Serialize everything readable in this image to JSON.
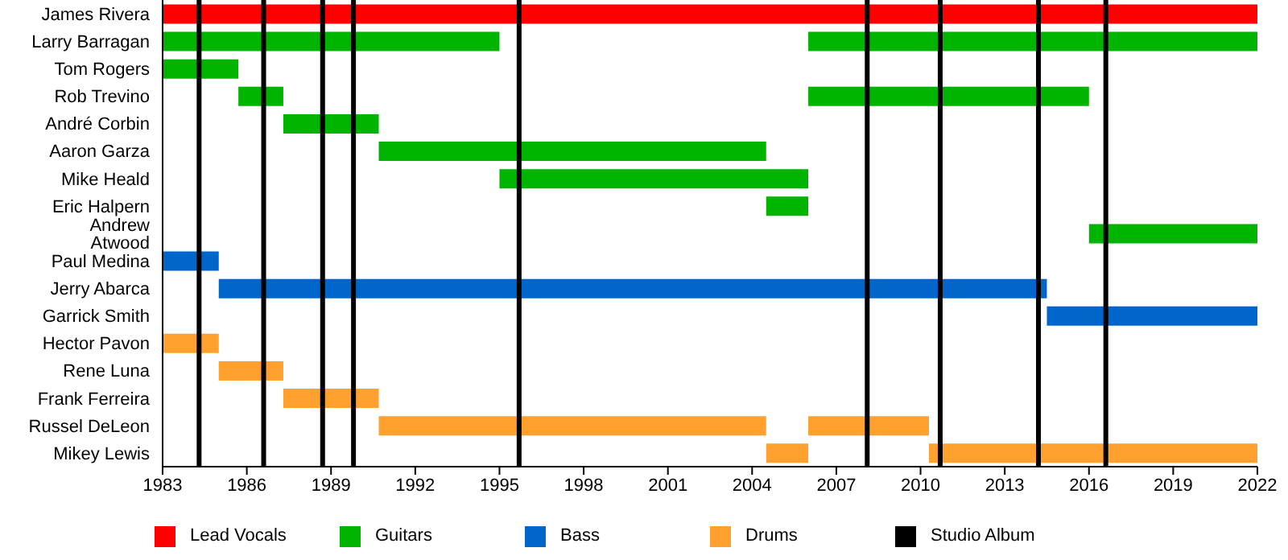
{
  "chart_data": {
    "type": "bar",
    "orientation": "horizontal",
    "categories": [
      "James Rivera",
      "Larry Barragan",
      "Tom Rogers",
      "Rob Trevino",
      "André Corbin",
      "Aaron Garza",
      "Mike Heald",
      "Eric Halpern",
      "Andrew Atwood",
      "Paul Medina",
      "Jerry Abarca",
      "Garrick Smith",
      "Hector Pavon",
      "Rene Luna",
      "Frank Ferreira",
      "Russel DeLeon",
      "Mikey Lewis"
    ],
    "series": [
      {
        "name": "Lead Vocals",
        "color": "#ff0000",
        "base": [
          1983,
          null,
          null,
          null,
          null,
          null,
          null,
          null,
          null,
          null,
          null,
          null,
          null,
          null,
          null,
          null,
          null
        ],
        "values": [
          39,
          null,
          null,
          null,
          null,
          null,
          null,
          null,
          null,
          null,
          null,
          null,
          null,
          null,
          null,
          null,
          null
        ]
      },
      {
        "name": "Guitars",
        "color": "#00b400",
        "base": [
          null,
          1983,
          1983,
          1985.7,
          1987.3,
          1990.7,
          1995,
          2004.5,
          2016,
          null,
          null,
          null,
          null,
          null,
          null,
          null,
          null
        ],
        "values": [
          null,
          12,
          2.7,
          1.6,
          3.4,
          13.8,
          11,
          1.5,
          6,
          null,
          null,
          null,
          null,
          null,
          null,
          null,
          null
        ]
      },
      {
        "color": "#00b400",
        "base": [
          null,
          2006,
          null,
          2006,
          null,
          null,
          null,
          null,
          null,
          null,
          null,
          null,
          null,
          null,
          null,
          null,
          null
        ],
        "values": [
          null,
          16,
          null,
          10,
          null,
          null,
          null,
          null,
          null,
          null,
          null,
          null,
          null,
          null,
          null,
          null,
          null
        ]
      },
      {
        "name": "Bass",
        "color": "#0066cc",
        "base": [
          null,
          null,
          null,
          null,
          null,
          null,
          null,
          null,
          null,
          1983,
          1985,
          2014.5,
          null,
          null,
          null,
          null,
          null
        ],
        "values": [
          null,
          null,
          null,
          null,
          null,
          null,
          null,
          null,
          null,
          2,
          29.5,
          7.5,
          null,
          null,
          null,
          null,
          null
        ]
      },
      {
        "name": "Drums",
        "color": "#ffa02f",
        "base": [
          null,
          null,
          null,
          null,
          null,
          null,
          null,
          null,
          null,
          null,
          null,
          null,
          1983,
          1985,
          1987.3,
          1990.7,
          2004.5
        ],
        "values": [
          null,
          null,
          null,
          null,
          null,
          null,
          null,
          null,
          null,
          null,
          null,
          null,
          2,
          2.3,
          3.4,
          13.8,
          1.5
        ]
      },
      {
        "color": "#ffa02f",
        "base": [
          null,
          null,
          null,
          null,
          null,
          null,
          null,
          null,
          null,
          null,
          null,
          null,
          null,
          null,
          null,
          2006,
          2010.3
        ],
        "values": [
          null,
          null,
          null,
          null,
          null,
          null,
          null,
          null,
          null,
          null,
          null,
          null,
          null,
          null,
          null,
          4.3,
          11.7
        ]
      }
    ],
    "ref_lines": [
      {
        "axis": "x",
        "value": 1984.3,
        "label": "Studio Album",
        "color": "#000000"
      },
      {
        "axis": "x",
        "value": 1986.6,
        "label": null,
        "color": "#000000"
      },
      {
        "axis": "x",
        "value": 1988.7,
        "label": null,
        "color": "#000000"
      },
      {
        "axis": "x",
        "value": 1989.8,
        "label": null,
        "color": "#000000"
      },
      {
        "axis": "x",
        "value": 1995.7,
        "label": null,
        "color": "#000000"
      },
      {
        "axis": "x",
        "value": 2008.1,
        "label": null,
        "color": "#000000"
      },
      {
        "axis": "x",
        "value": 2010.7,
        "label": null,
        "color": "#000000"
      },
      {
        "axis": "x",
        "value": 2014.2,
        "label": null,
        "color": "#000000"
      },
      {
        "axis": "x",
        "value": 2016.6,
        "label": null,
        "color": "#000000"
      }
    ],
    "xlim": [
      1983,
      2022
    ],
    "xticks": [
      1983,
      1986,
      1989,
      1992,
      1995,
      1998,
      2001,
      2004,
      2007,
      2010,
      2013,
      2016,
      2019,
      2022
    ],
    "grid": false,
    "legend": "bottom"
  }
}
